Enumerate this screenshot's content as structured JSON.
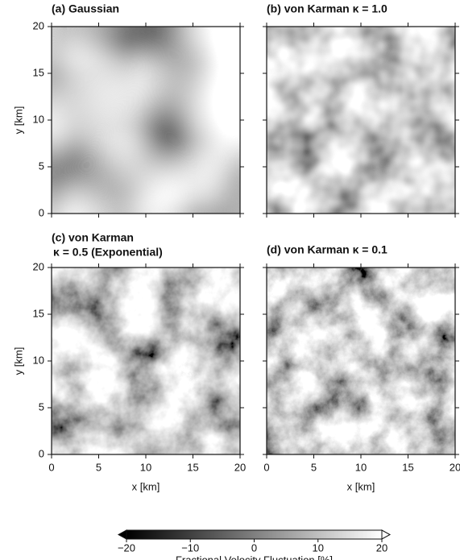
{
  "chart_data": [
    {
      "type": "image",
      "title": [
        "(a) Gaussian"
      ],
      "ylabel": "y [km]",
      "xlim": [
        0,
        20
      ],
      "ylim": [
        0,
        20
      ],
      "xticks": [
        0,
        5,
        10,
        15,
        20
      ],
      "yticks": [
        0,
        5,
        10,
        15,
        20
      ]
    },
    {
      "type": "image",
      "title": [
        "(b) von Karman   κ = 1.0"
      ],
      "xlim": [
        0,
        20
      ],
      "ylim": [
        0,
        20
      ],
      "xticks": [
        0,
        5,
        10,
        15,
        20
      ],
      "yticks": [
        0,
        5,
        10,
        15,
        20
      ]
    },
    {
      "type": "image",
      "title": [
        "(c) von Karman",
        "κ = 0.5 (Exponential)"
      ],
      "ylabel": "y [km]",
      "xlabel": "x [km]",
      "xlim": [
        0,
        20
      ],
      "ylim": [
        0,
        20
      ],
      "xticks": [
        0,
        5,
        10,
        15,
        20
      ],
      "yticks": [
        0,
        5,
        10,
        15,
        20
      ]
    },
    {
      "type": "image",
      "title": [
        "(d) von Karman   κ = 0.1"
      ],
      "xlabel": "x [km]",
      "xlim": [
        0,
        20
      ],
      "ylim": [
        0,
        20
      ],
      "xticks": [
        0,
        5,
        10,
        15,
        20
      ],
      "yticks": [
        0,
        5,
        10,
        15,
        20
      ]
    },
    {
      "type": "colorbar",
      "label": "Fractional Velocity Fluctuation [%]",
      "clim": [
        -20,
        20
      ],
      "ticks": [
        {
          "value": -20,
          "label": "−20"
        },
        {
          "value": -10,
          "label": "−10"
        },
        0,
        10,
        20
      ],
      "cmap": [
        "#000000",
        "#ffffff"
      ]
    }
  ]
}
